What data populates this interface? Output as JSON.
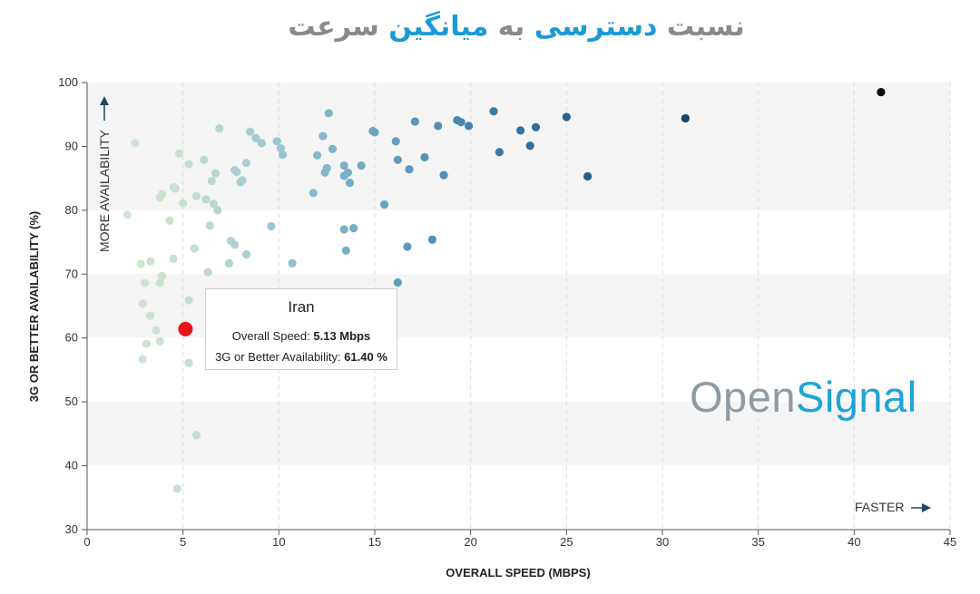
{
  "title": {
    "part1": "نسبت",
    "part2": "دسترسی",
    "part3": "به",
    "part4": "میانگین",
    "part5": "سرعت"
  },
  "logo": {
    "open": "Open",
    "signal": "Signal"
  },
  "annotations": {
    "faster": "FASTER",
    "more_availability": "MORE AVAILABILITY"
  },
  "tooltip": {
    "country": "Iran",
    "speed_label": "Overall Speed:",
    "speed_value": "5.13 Mbps",
    "availability_label": "3G or Better Availability:",
    "availability_value": "61.40 %"
  },
  "colors": {
    "highlight": "#e8141b",
    "band": "#f5f5f5",
    "title_blue": "#1b9ad6",
    "title_gray": "#8a8a8a"
  },
  "chart_data": {
    "type": "scatter",
    "title": "نسبت دسترسی به میانگین سرعت",
    "xlabel": "OVERALL SPEED (MBPS)",
    "ylabel": "3G OR BETTER AVAILABILITY (%)",
    "xlim": [
      0,
      45
    ],
    "ylim": [
      30,
      100
    ],
    "xticks": [
      0,
      5,
      10,
      15,
      20,
      25,
      30,
      35,
      40,
      45
    ],
    "yticks": [
      30,
      40,
      50,
      60,
      70,
      80,
      90,
      100
    ],
    "grid": "vertical dashed, alternating horizontal bands",
    "highlight": {
      "name": "Iran",
      "x": 5.13,
      "y": 61.4
    },
    "points": [
      [
        2.5,
        90.5
      ],
      [
        2.1,
        79.3
      ],
      [
        2.8,
        71.6
      ],
      [
        3.3,
        72.0
      ],
      [
        3.0,
        68.6
      ],
      [
        3.8,
        68.6
      ],
      [
        3.9,
        69.7
      ],
      [
        2.9,
        65.4
      ],
      [
        3.3,
        63.5
      ],
      [
        3.6,
        61.2
      ],
      [
        3.1,
        59.1
      ],
      [
        3.8,
        59.5
      ],
      [
        2.9,
        56.7
      ],
      [
        4.7,
        36.4
      ],
      [
        5.7,
        44.8
      ],
      [
        5.3,
        56.1
      ],
      [
        5.3,
        65.9
      ],
      [
        5.6,
        74.0
      ],
      [
        4.5,
        72.4
      ],
      [
        4.3,
        78.4
      ],
      [
        3.9,
        82.5
      ],
      [
        3.8,
        82.0
      ],
      [
        4.5,
        83.6
      ],
      [
        4.6,
        83.4
      ],
      [
        5.0,
        81.1
      ],
      [
        5.7,
        82.2
      ],
      [
        6.2,
        81.7
      ],
      [
        6.4,
        77.6
      ],
      [
        6.8,
        80.0
      ],
      [
        6.6,
        81.0
      ],
      [
        6.1,
        87.9
      ],
      [
        5.3,
        87.2
      ],
      [
        4.8,
        88.9
      ],
      [
        6.7,
        85.8
      ],
      [
        6.5,
        84.6
      ],
      [
        6.9,
        92.8
      ],
      [
        7.5,
        75.2
      ],
      [
        7.7,
        74.6
      ],
      [
        7.4,
        71.7
      ],
      [
        6.3,
        70.3
      ],
      [
        8.3,
        73.1
      ],
      [
        7.7,
        86.3
      ],
      [
        7.8,
        86.0
      ],
      [
        8.3,
        87.4
      ],
      [
        8.0,
        84.4
      ],
      [
        8.1,
        84.7
      ],
      [
        8.5,
        92.3
      ],
      [
        8.8,
        91.3
      ],
      [
        9.1,
        90.5
      ],
      [
        9.6,
        77.5
      ],
      [
        9.9,
        90.8
      ],
      [
        10.1,
        89.7
      ],
      [
        10.2,
        88.7
      ],
      [
        10.7,
        71.7
      ],
      [
        11.8,
        82.7
      ],
      [
        12.0,
        88.6
      ],
      [
        12.3,
        91.6
      ],
      [
        12.6,
        95.2
      ],
      [
        12.4,
        85.9
      ],
      [
        12.5,
        86.6
      ],
      [
        12.8,
        89.6
      ],
      [
        13.4,
        87.0
      ],
      [
        13.4,
        85.4
      ],
      [
        13.6,
        85.9
      ],
      [
        13.7,
        84.3
      ],
      [
        13.4,
        77.0
      ],
      [
        13.9,
        77.2
      ],
      [
        13.5,
        73.7
      ],
      [
        14.3,
        87.0
      ],
      [
        14.9,
        92.4
      ],
      [
        15.0,
        92.2
      ],
      [
        15.5,
        80.9
      ],
      [
        16.2,
        68.7
      ],
      [
        16.7,
        74.3
      ],
      [
        16.2,
        87.9
      ],
      [
        16.1,
        90.8
      ],
      [
        16.8,
        86.4
      ],
      [
        17.1,
        93.9
      ],
      [
        17.6,
        88.3
      ],
      [
        18.0,
        75.4
      ],
      [
        18.3,
        93.2
      ],
      [
        18.6,
        85.5
      ],
      [
        19.3,
        94.1
      ],
      [
        19.5,
        93.8
      ],
      [
        19.9,
        93.2
      ],
      [
        21.2,
        95.5
      ],
      [
        21.5,
        89.1
      ],
      [
        22.6,
        92.5
      ],
      [
        23.1,
        90.1
      ],
      [
        23.4,
        93.0
      ],
      [
        25.0,
        94.6
      ],
      [
        26.1,
        85.3
      ],
      [
        31.2,
        94.4
      ],
      [
        41.4,
        98.5
      ]
    ]
  }
}
